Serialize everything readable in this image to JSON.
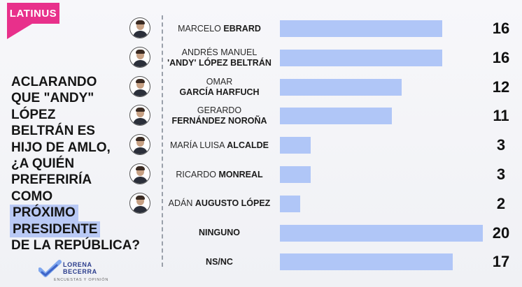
{
  "brand": {
    "channel": "LATINUS",
    "pollster_line1": "LORENA",
    "pollster_line2": "BECERRA",
    "pollster_tagline": "ENCUESTAS Y OPINIÓN"
  },
  "question": {
    "line1": "ACLARANDO",
    "line2": "QUE \"ANDY\"",
    "line3": "LÓPEZ",
    "line4": "BELTRÁN ES",
    "line5": "HIJO DE AMLO,",
    "line6": "¿A QUIÉN",
    "line7": "PREFERIRÍA",
    "line8": "COMO",
    "line9": "PRÓXIMO",
    "line10": "PRESIDENTE",
    "line11": "DE LA REPÚBLICA?"
  },
  "chart_data": {
    "type": "bar",
    "orientation": "horizontal",
    "title": "ACLARANDO QUE \"ANDY\" LÓPEZ BELTRÁN ES HIJO DE AMLO, ¿A QUIÉN PREFERIRÍA COMO PRÓXIMO PRESIDENTE DE LA REPÚBLICA?",
    "xlim": [
      0,
      20
    ],
    "grid": false,
    "legend": "none",
    "bar_color": "#b0c6f7",
    "categories": [
      "MARCELO EBRARD",
      "ANDRÉS MANUEL 'ANDY' LÓPEZ BELTRÁN",
      "OMAR GARCÍA HARFUCH",
      "GERARDO FERNÁNDEZ NOROÑA",
      "MARÍA LUISA ALCALDE",
      "RICARDO MONREAL",
      "ADÁN AUGUSTO LÓPEZ",
      "NINGUNO",
      "NS/NC"
    ],
    "rows": [
      {
        "first": "MARCELO",
        "last": "EBRARD",
        "layout": "inline",
        "value": 16,
        "value_text": "16",
        "photo": true
      },
      {
        "first": "ANDRÉS MANUEL",
        "last": "'ANDY' LÓPEZ BELTRÁN",
        "layout": "stacked",
        "value": 16,
        "value_text": "16",
        "photo": true
      },
      {
        "first": "OMAR",
        "last": "GARCÍA HARFUCH",
        "layout": "stacked",
        "value": 12,
        "value_text": "12",
        "photo": true
      },
      {
        "first": "GERARDO",
        "last": "FERNÁNDEZ NOROÑA",
        "layout": "stacked",
        "value": 11,
        "value_text": "11",
        "photo": true
      },
      {
        "first": "MARÍA LUISA",
        "last": "ALCALDE",
        "layout": "inline",
        "value": 3,
        "value_text": "3",
        "photo": true
      },
      {
        "first": "RICARDO",
        "last": "MONREAL",
        "layout": "inline",
        "value": 3,
        "value_text": "3",
        "photo": true
      },
      {
        "first": "ADÁN",
        "last": "AUGUSTO LÓPEZ",
        "layout": "inline",
        "value": 2,
        "value_text": "2",
        "photo": true
      },
      {
        "first": "",
        "last": "NINGUNO",
        "layout": "inline",
        "value": 20,
        "value_text": "20",
        "photo": false
      },
      {
        "first": "",
        "last": "NS/NC",
        "layout": "inline",
        "value": 17,
        "value_text": "17",
        "photo": false
      }
    ],
    "values": [
      16,
      16,
      12,
      11,
      3,
      3,
      2,
      20,
      17
    ]
  }
}
